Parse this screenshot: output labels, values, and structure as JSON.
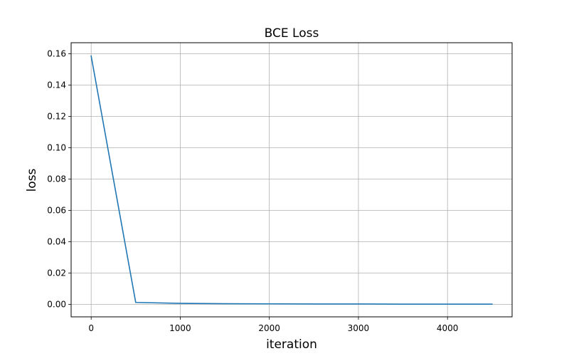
{
  "chart_data": {
    "type": "line",
    "title": "BCE Loss",
    "xlabel": "iteration",
    "ylabel": "loss",
    "xlim": [
      -225,
      4725
    ],
    "ylim": [
      -0.008,
      0.167
    ],
    "xticks": [
      0,
      1000,
      2000,
      3000,
      4000
    ],
    "xtick_labels": [
      "0",
      "1000",
      "2000",
      "3000",
      "4000"
    ],
    "yticks": [
      0.0,
      0.02,
      0.04,
      0.06,
      0.08,
      0.1,
      0.12,
      0.14,
      0.16
    ],
    "ytick_labels": [
      "0.00",
      "0.02",
      "0.04",
      "0.06",
      "0.08",
      "0.10",
      "0.12",
      "0.14",
      "0.16"
    ],
    "grid": true,
    "legend": "none",
    "colors": {
      "line": "#1f77b4",
      "grid": "#b0b0b0",
      "axes": "#000000"
    },
    "series": [
      {
        "x": [
          0,
          500,
          1000,
          1500,
          2000,
          2500,
          3000,
          3500,
          4000,
          4500
        ],
        "values": [
          0.1585,
          0.0012,
          0.0006,
          0.0004,
          0.0003,
          0.0002,
          0.0002,
          0.0001,
          0.0001,
          0.0001
        ]
      }
    ]
  }
}
